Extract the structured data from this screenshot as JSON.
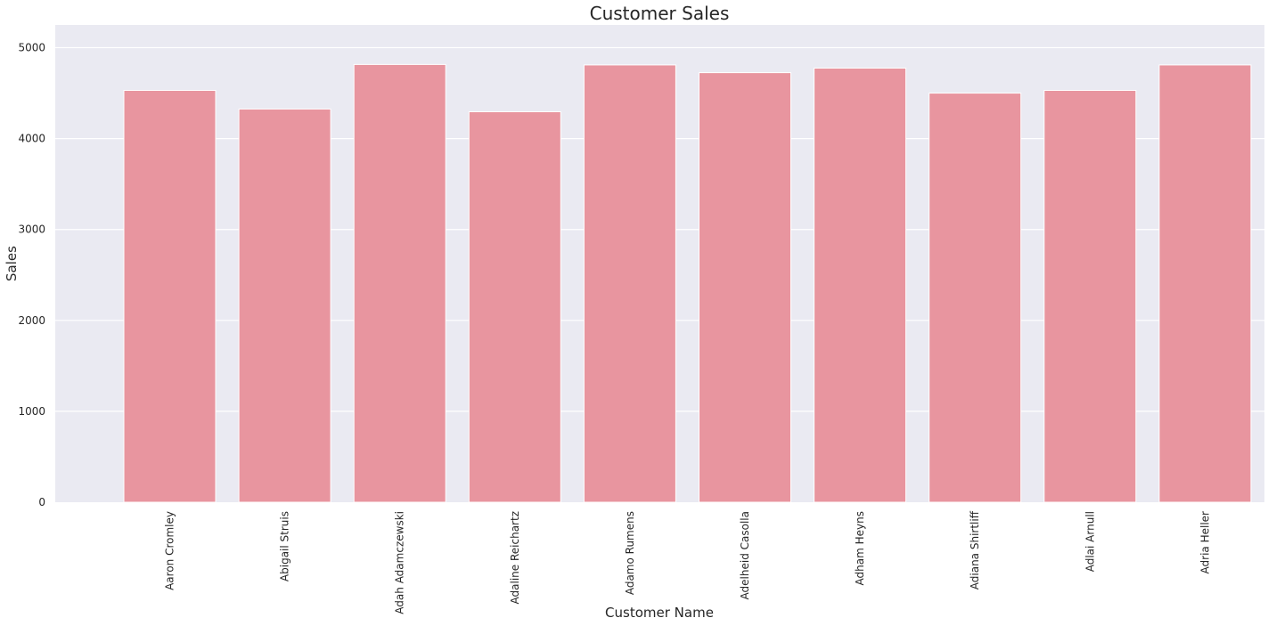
{
  "chart_data": {
    "type": "bar",
    "title": "Customer Sales",
    "xlabel": "Customer Name",
    "ylabel": "Sales",
    "categories": [
      "Aaron Cromley",
      "Abigail Struis",
      "Adah Adamczewski",
      "Adaline Reichartz",
      "Adamo Rumens",
      "Adelheid Casolla",
      "Adham Heyns",
      "Adiana Shirtliff",
      "Adlai Arnull",
      "Adria Heller"
    ],
    "values": [
      4530,
      4325,
      4815,
      4295,
      4810,
      4725,
      4775,
      4500,
      4530,
      4810
    ],
    "ylim": [
      0,
      5250
    ],
    "yticks": [
      "0",
      "1000",
      "2000",
      "3000",
      "4000",
      "5000"
    ],
    "grid": true,
    "bar_color": "#e8959f",
    "background_color": "#eaeaf2"
  }
}
